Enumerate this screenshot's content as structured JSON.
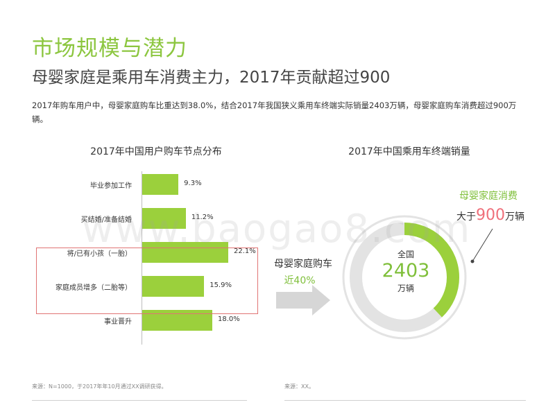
{
  "header": {
    "title": "市场规模与潜力",
    "subtitle": "母婴家庭是乘用车消费主力，2017年贡献超过900",
    "description": "2017年购车用户中，母婴家庭购车比重达到38.0%，结合2017年我国狭义乘用车终端实际销量2403万辆，母婴家庭购车消费超过900万辆。"
  },
  "bar_chart": {
    "title": "2017年中国用户购车节点分布",
    "highlight_note": "将/已有小孩 and 家庭成员增多 highlighted"
  },
  "chart_data": [
    {
      "type": "bar",
      "orientation": "horizontal",
      "title": "2017年中国用户购车节点分布",
      "categories": [
        "毕业参加工作",
        "买结婚/准备结婚",
        "将/已有小孩（一胎）",
        "家庭成员增多（二胎等）",
        "事业晋升"
      ],
      "values": [
        9.3,
        11.2,
        22.1,
        15.9,
        18.0
      ],
      "value_labels": [
        "9.3%",
        "11.2%",
        "22.1%",
        "15.9%",
        "18.0%"
      ],
      "xlim": [
        0,
        25
      ],
      "color": "#9bd03c"
    },
    {
      "type": "pie",
      "variant": "donut",
      "title": "2017年中国乘用车终端销量",
      "total": 2403,
      "share": 0.38,
      "center_label": "全国",
      "center_value": "2403",
      "center_unit": "万辆",
      "colors": {
        "share": "#9bd03c",
        "rest": "#e3e3e3"
      }
    }
  ],
  "donut_chart": {
    "title": "2017年中国乘用车终端销量",
    "center_label": "全国",
    "center_value": "2403",
    "center_unit": "万辆",
    "callout_title": "母婴家庭消费",
    "callout_prefix": "大于",
    "callout_value": "900",
    "callout_suffix": "万辆"
  },
  "arrow": {
    "label": "母婴家庭购车",
    "percent": "近40%"
  },
  "watermark": "www.baogao8.com",
  "sources": {
    "left": "来源：N=1000，于2017年年10月通过XX调研获得。",
    "right": "来源：XX。"
  },
  "colors": {
    "accent_green": "#8cc63f",
    "bar_green": "#9bd03c",
    "highlight_red": "#e07373",
    "callout_pink": "#ef6f7a"
  }
}
